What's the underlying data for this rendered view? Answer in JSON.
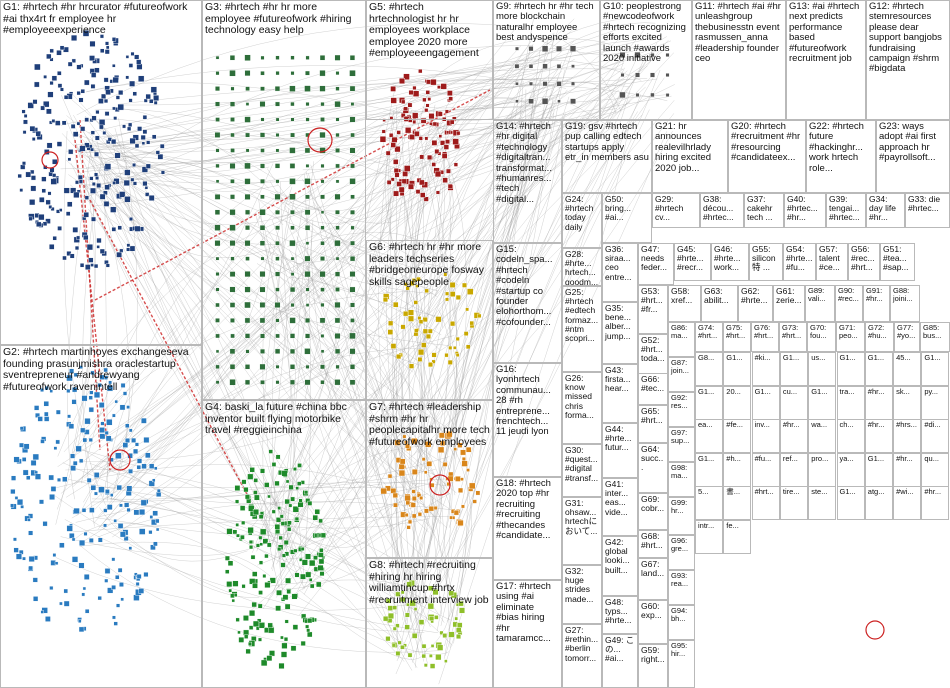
{
  "groups": [
    {
      "id": "G1",
      "text": "G1: #hrtech #hr hrcurator #futureofwork #ai thx4rt fr employee hr #employeeexperience",
      "color": "#1f3f7a"
    },
    {
      "id": "G2",
      "text": "G2: #hrtech martinhoyes exchangeseva founding prasunjmishra oraclestartup sventrepreneur #andrewyang #futureofwork ravenintell",
      "color": "#2a7bc0"
    },
    {
      "id": "G3",
      "text": "G3: #hrtech #hr hr more employee #futureofwork #hiring technology easy help",
      "color": "#2e6e3a"
    },
    {
      "id": "G4",
      "text": "G4: baski_la future #china bbc inventor built flying motorbike travel #reggieinchina",
      "color": "#1e8a2a"
    },
    {
      "id": "G5",
      "text": "G5: #hrtech hrtechnologist hr hr employees workplace employee 2020 more #employeeengagement",
      "color": "#9e1b1b"
    },
    {
      "id": "G6",
      "text": "G6: #hrtech hr #hr more leaders techseries #bridgeoneurope fosway skills sagepeople",
      "color": "#c9a800"
    },
    {
      "id": "G7",
      "text": "G7: #hrtech #leadership #shrm #hr hr peoplecapitalhr more tech #futureofwork employees",
      "color": "#d9861b"
    },
    {
      "id": "G8",
      "text": "G8: #hrtech #recruiting #hiring hr hiring williamtincup #hrtx #recruitment interview job",
      "color": "#8fbf2a"
    },
    {
      "id": "G9",
      "text": "G9: #hrtech hr #hr tech more blockchain naturalhr employee best andyspence",
      "color": "#444444"
    },
    {
      "id": "G10",
      "text": "G10: peoplestrong #newcodeofwork #hrtech recognizing efforts excited launch #awards 2020 initiative",
      "color": "#444444"
    },
    {
      "id": "G11",
      "text": "G11: #hrtech #ai #hr unleashgroup thebusinesstn event rasmussen_anna #leadership founder ceo",
      "color": "#444444"
    },
    {
      "id": "G12",
      "text": "G12: #hrtech stemresources please dear support bangjobs fundraising campaign #shrm #bigdata",
      "color": "#444444"
    },
    {
      "id": "G13",
      "text": "G13: #ai #hrtech next predicts performance based #futureofwork recruitment job",
      "color": "#444444"
    },
    {
      "id": "G14",
      "text": "G14: #hrtech #hr digital #technology #digitaltran... transformat... #humanres... #tech #digital...",
      "color": "#444444"
    },
    {
      "id": "G15",
      "text": "G15: codeln_spa... #hrtech #codeln #startup co founder elohorthom... #cofounder...",
      "color": "#444444"
    },
    {
      "id": "G16",
      "text": "G16: lyonhrtech communau... 28 #rh entreprene... frenchtech... 11 jeudi lyon",
      "color": "#444444"
    },
    {
      "id": "G17",
      "text": "G17: #hrtech using #ai eliminate #bias hiring #hr tamaramcc...",
      "color": "#444444"
    },
    {
      "id": "G18",
      "text": "G18: #hrtech 2020 top #hr recruiting #recruiting #thecandes #candidate...",
      "color": "#444444"
    },
    {
      "id": "G19",
      "text": "G19: gsv #hrtech pup calling edtech startups apply etr_in members asu",
      "color": "#444444"
    },
    {
      "id": "G20",
      "text": "G20: #hrtech #recruitment #hr #resourcing #candidateex...",
      "color": "#444444"
    },
    {
      "id": "G21",
      "text": "G21: hr announces realevilhrlady hiring excited 2020 job...",
      "color": "#444444"
    },
    {
      "id": "G22",
      "text": "G22: #hrtech future #hackinghr... work hrtech role...",
      "color": "#444444"
    },
    {
      "id": "G23",
      "text": "G23: ways adopt #ai first approach hr #payrollsoft...",
      "color": "#444444"
    },
    {
      "id": "G24",
      "text": "G24: #hrtech today daily",
      "color": "#444444"
    },
    {
      "id": "G25",
      "text": "G25: #hrtech #edtech formaz... #ntm scopri...",
      "color": "#444444"
    },
    {
      "id": "G26",
      "text": "G26: know missed chris forma...",
      "color": "#444444"
    },
    {
      "id": "G27",
      "text": "G27: #rethin... #berlin tomorr...",
      "color": "#444444"
    },
    {
      "id": "G28",
      "text": "G28: #hrte... hrtech... goodm...",
      "color": "#444444"
    },
    {
      "id": "G29",
      "text": "G29: #hrtech cv...",
      "color": "#444444"
    },
    {
      "id": "G30",
      "text": "G30: #quest... #digital #transf...",
      "color": "#444444"
    },
    {
      "id": "G31",
      "text": "G31: ohsaw... hrtechに おいて...",
      "color": "#444444"
    },
    {
      "id": "G32",
      "text": "G32: huge strides made...",
      "color": "#444444"
    },
    {
      "id": "G33",
      "text": "G33: die #hrtec...",
      "color": "#444444"
    },
    {
      "id": "G34",
      "text": "G34: day life #hr...",
      "color": "#444444"
    },
    {
      "id": "G35",
      "text": "G35: bene... alber... jump...",
      "color": "#444444"
    },
    {
      "id": "G36",
      "text": "G36: siraa... ceo entre...",
      "color": "#444444"
    },
    {
      "id": "G37",
      "text": "G37: cakehr tech ...",
      "color": "#444444"
    },
    {
      "id": "G38",
      "text": "G38: décou... #hrtec...",
      "color": "#444444"
    },
    {
      "id": "G39",
      "text": "G39: tengai... #hrtec...",
      "color": "#444444"
    },
    {
      "id": "G40",
      "text": "G40: #hrtec... #hr...",
      "color": "#444444"
    },
    {
      "id": "G41",
      "text": "G41: inter... eas... vide...",
      "color": "#444444"
    },
    {
      "id": "G42",
      "text": "G42: global looki... built...",
      "color": "#444444"
    },
    {
      "id": "G43",
      "text": "G43: firsta... hear...",
      "color": "#444444"
    },
    {
      "id": "G44",
      "text": "G44: #hrte... futur...",
      "color": "#444444"
    },
    {
      "id": "G45",
      "text": "G45: #hrte... #recr...",
      "color": "#444444"
    },
    {
      "id": "G46",
      "text": "G46: #hrte... work...",
      "color": "#444444"
    },
    {
      "id": "G47",
      "text": "G47: needs feder...",
      "color": "#444444"
    },
    {
      "id": "G48",
      "text": "G48: typs... #hrte...",
      "color": "#444444"
    },
    {
      "id": "G49",
      "text": "G49: この... #ai...",
      "color": "#444444"
    },
    {
      "id": "G50",
      "text": "G50: bring... #ai...",
      "color": "#444444"
    },
    {
      "id": "G51",
      "text": "G51: #tea... #sap...",
      "color": "#444444"
    },
    {
      "id": "G52",
      "text": "G52: #hrt... toda...",
      "color": "#444444"
    },
    {
      "id": "G53",
      "text": "G53: #hrt... #fr...",
      "color": "#444444"
    },
    {
      "id": "G54",
      "text": "G54: #hrte... #fu...",
      "color": "#444444"
    },
    {
      "id": "G55",
      "text": "G55: silicon 特 ...",
      "color": "#444444"
    },
    {
      "id": "G56",
      "text": "G56: #rec... #hrt...",
      "color": "#444444"
    },
    {
      "id": "G57",
      "text": "G57: talent #ce...",
      "color": "#444444"
    },
    {
      "id": "G58",
      "text": "G58: xref...",
      "color": "#444444"
    },
    {
      "id": "G59",
      "text": "G59: right...",
      "color": "#444444"
    },
    {
      "id": "G60",
      "text": "G60: exp...",
      "color": "#444444"
    },
    {
      "id": "G61",
      "text": "G61: zerie...",
      "color": "#444444"
    },
    {
      "id": "G62",
      "text": "G62: #hrte...",
      "color": "#444444"
    },
    {
      "id": "G63",
      "text": "G63: abilit...",
      "color": "#444444"
    },
    {
      "id": "G64",
      "text": "G64: succ...",
      "color": "#444444"
    },
    {
      "id": "G65",
      "text": "G65: #hrt...",
      "color": "#444444"
    },
    {
      "id": "G66",
      "text": "G66: #tec...",
      "color": "#444444"
    },
    {
      "id": "G67",
      "text": "G67: land...",
      "color": "#444444"
    },
    {
      "id": "G68",
      "text": "G68: #hrt...",
      "color": "#444444"
    },
    {
      "id": "G69",
      "text": "G69: cobr...",
      "color": "#444444"
    },
    {
      "id": "G70",
      "text": "G70: fou...",
      "color": "#444444"
    },
    {
      "id": "G71",
      "text": "G71: peo...",
      "color": "#444444"
    },
    {
      "id": "G72",
      "text": "G72: #hu...",
      "color": "#444444"
    },
    {
      "id": "G73",
      "text": "G73: #hrt...",
      "color": "#444444"
    },
    {
      "id": "G74",
      "text": "G74: #hrt...",
      "color": "#444444"
    },
    {
      "id": "G75",
      "text": "G75: #hrt...",
      "color": "#444444"
    },
    {
      "id": "G76",
      "text": "G76: #hrt...",
      "color": "#444444"
    },
    {
      "id": "G77",
      "text": "G77: #yo...",
      "color": "#444444"
    },
    {
      "id": "G85",
      "text": "G85: bus...",
      "color": "#444444"
    },
    {
      "id": "G86",
      "text": "G86: ma...",
      "color": "#444444"
    },
    {
      "id": "G87",
      "text": "G87: join...",
      "color": "#444444"
    },
    {
      "id": "G88",
      "text": "G88: joini...",
      "color": "#444444"
    },
    {
      "id": "G89",
      "text": "G89: vali...",
      "color": "#444444"
    },
    {
      "id": "G90",
      "text": "G90: #rec...",
      "color": "#444444"
    },
    {
      "id": "G91",
      "text": "G91: #hr...",
      "color": "#444444"
    },
    {
      "id": "G92",
      "text": "G92: res...",
      "color": "#444444"
    },
    {
      "id": "G93",
      "text": "G93: rea...",
      "color": "#444444"
    },
    {
      "id": "G94",
      "text": "G94: bh...",
      "color": "#444444"
    },
    {
      "id": "G95",
      "text": "G95: hir...",
      "color": "#444444"
    },
    {
      "id": "G96",
      "text": "G96: gre...",
      "color": "#444444"
    },
    {
      "id": "G97",
      "text": "G97: sup...",
      "color": "#444444"
    },
    {
      "id": "G98",
      "text": "G98: ma...",
      "color": "#444444"
    },
    {
      "id": "G99",
      "text": "G99: hr...",
      "color": "#444444"
    }
  ],
  "tiny_texts": [
    "G8...",
    "G1...",
    "#ki...",
    "G1...",
    "us...",
    "G1...",
    "G1...",
    "45...",
    "G1...",
    "G1...",
    "20...",
    "G1...",
    "cu...",
    "G1...",
    "tra...",
    "#hr...",
    "sk...",
    "py...",
    "ea...",
    "#fe...",
    "inv...",
    "#hr...",
    "wa...",
    "ch...",
    "#hr...",
    "#hrs...",
    "#di...",
    "G1...",
    "#h...",
    "#fu...",
    "ref...",
    "pro...",
    "ya...",
    "G1...",
    "#hr...",
    "qu...",
    "5...",
    "書...",
    "#hrt...",
    "tire...",
    "ste...",
    "G1...",
    "atg...",
    "#wi...",
    "#hr...",
    "intr...",
    "fe..."
  ]
}
